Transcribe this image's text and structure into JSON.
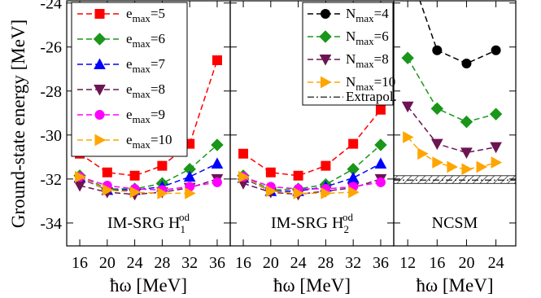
{
  "chart_data": [
    {
      "type": "line",
      "ylabel": "Ground-state energy [MeV]",
      "xlabel": "ħω [MeV]",
      "panel_label": {
        "base": "IM-SRG H",
        "sub": "1",
        "sup": "od"
      },
      "x": [
        16,
        20,
        24,
        28,
        32,
        36
      ],
      "xlim": [
        14.1,
        37.9
      ],
      "xticks": [
        16,
        20,
        24,
        28,
        32,
        36
      ],
      "ylim": [
        -35.04,
        -23.9
      ],
      "yticks": [
        -34,
        -32,
        -30,
        -28,
        -26,
        -24
      ],
      "series": [
        {
          "name": {
            "base": "e",
            "sub": "max",
            "rest": "=5"
          },
          "color": "#ff0000",
          "marker": "square",
          "values": [
            -30.85,
            -31.7,
            -31.85,
            -31.4,
            -30.4,
            -26.6
          ]
        },
        {
          "name": {
            "base": "e",
            "sub": "max",
            "rest": "=6"
          },
          "color": "#1a961a",
          "marker": "diamond",
          "values": [
            -31.85,
            -32.45,
            -32.45,
            -32.2,
            -31.55,
            -30.45
          ]
        },
        {
          "name": {
            "base": "e",
            "sub": "max",
            "rest": "=7"
          },
          "color": "#0000ff",
          "marker": "triangle-up",
          "values": [
            -31.95,
            -32.5,
            -32.5,
            -32.35,
            -31.9,
            -31.3
          ]
        },
        {
          "name": {
            "base": "e",
            "sub": "max",
            "rest": "=8"
          },
          "color": "#6b1552",
          "marker": "triangle-down",
          "values": [
            -32.3,
            -32.6,
            -32.7,
            -32.6,
            -32.4,
            -32.0
          ]
        },
        {
          "name": {
            "base": "e",
            "sub": "max",
            "rest": "=9"
          },
          "color": "#ff00ff",
          "marker": "circle",
          "values": [
            -31.9,
            -32.3,
            -32.45,
            -32.5,
            -32.35,
            -32.15
          ]
        },
        {
          "name": {
            "base": "e",
            "sub": "max",
            "rest": "=10"
          },
          "color": "#ffa500",
          "marker": "triangle-right",
          "values": [
            -31.9,
            -32.5,
            -32.6,
            -32.65,
            -32.65,
            null
          ]
        }
      ]
    },
    {
      "type": "line",
      "xlabel": "ħω [MeV]",
      "panel_label": {
        "base": "IM-SRG H",
        "sub": "2",
        "sup": "od"
      },
      "x": [
        16,
        20,
        24,
        28,
        32,
        36
      ],
      "xlim": [
        14.1,
        37.9
      ],
      "xticks": [
        16,
        20,
        24,
        28,
        32,
        36
      ],
      "series": [
        {
          "color": "#ff0000",
          "marker": "square",
          "values": [
            -30.85,
            -31.7,
            -31.85,
            -31.4,
            -30.4,
            -28.85
          ]
        },
        {
          "color": "#1a961a",
          "marker": "diamond",
          "values": [
            -31.85,
            -32.5,
            -32.45,
            -32.25,
            -31.55,
            -30.45
          ]
        },
        {
          "color": "#0000ff",
          "marker": "triangle-up",
          "values": [
            -31.95,
            -32.55,
            -32.55,
            -32.35,
            -31.95,
            -31.3
          ]
        },
        {
          "color": "#6b1552",
          "marker": "triangle-down",
          "values": [
            -32.2,
            -32.6,
            -32.7,
            -32.55,
            -32.4,
            -32.0
          ]
        },
        {
          "color": "#ff00ff",
          "marker": "circle",
          "values": [
            -31.9,
            -32.35,
            -32.45,
            -32.45,
            -32.35,
            -32.15
          ]
        },
        {
          "color": "#ffa500",
          "marker": "triangle-right",
          "values": [
            -31.9,
            -32.55,
            -32.65,
            -32.65,
            -32.6,
            null
          ]
        }
      ]
    },
    {
      "type": "line",
      "xlabel": "ħω [MeV]",
      "panel_label": {
        "base": "NCSM"
      },
      "xlim": [
        10.1,
        26.7
      ],
      "xticks": [
        12,
        16,
        20,
        24
      ],
      "series": [
        {
          "name": {
            "base": "N",
            "sub": "max",
            "rest": "=4"
          },
          "color": "#000000",
          "marker": "circle",
          "x": [
            12,
            16,
            20,
            24
          ],
          "values": [
            -22.3,
            -26.15,
            -26.75,
            -26.15
          ]
        },
        {
          "name": {
            "base": "N",
            "sub": "max",
            "rest": "=6"
          },
          "color": "#1a961a",
          "marker": "diamond",
          "x": [
            12,
            16,
            20,
            24
          ],
          "values": [
            -26.5,
            -28.8,
            -29.4,
            -29.05
          ]
        },
        {
          "name": {
            "base": "N",
            "sub": "max",
            "rest": "=8"
          },
          "color": "#6b1552",
          "marker": "triangle-down",
          "x": [
            12,
            16,
            20,
            24
          ],
          "values": [
            -28.7,
            -30.4,
            -30.8,
            -30.55
          ]
        },
        {
          "name": {
            "base": "N",
            "sub": "max",
            "rest": "=10"
          },
          "color": "#ffa500",
          "marker": "triangle-right",
          "x": [
            12,
            14,
            16,
            18,
            20,
            22,
            24
          ],
          "values": [
            -30.1,
            -30.85,
            -31.25,
            -31.45,
            -31.55,
            -31.45,
            -31.25
          ]
        }
      ],
      "extrapolation": {
        "name": "Extrapol.",
        "value": -32.05,
        "band": [
          -32.2,
          -31.85
        ]
      }
    }
  ]
}
